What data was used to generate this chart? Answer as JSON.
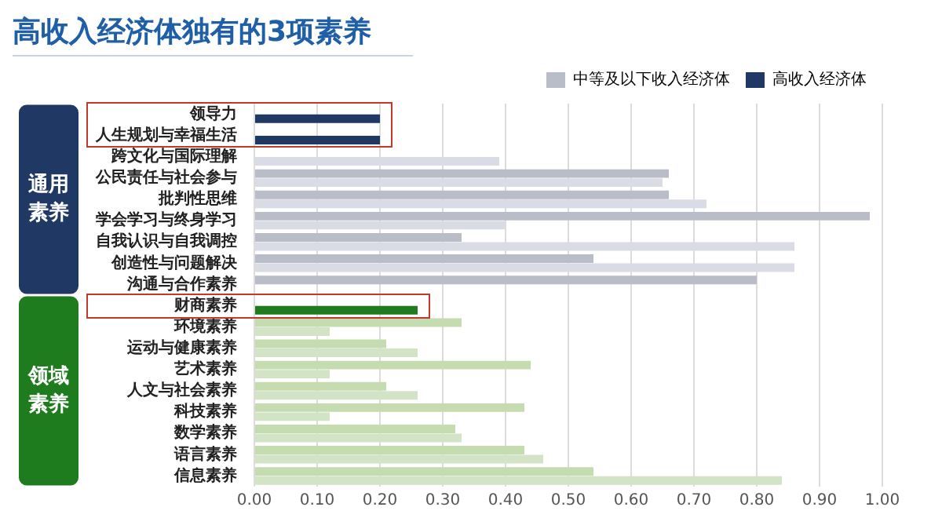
{
  "chart_data": {
    "type": "bar",
    "orientation": "horizontal",
    "title": "高收入经济体独有的3项素养",
    "categories": [
      "领导力",
      "人生规划与幸福生活",
      "跨文化与国际理解",
      "公民责任与社会参与",
      "批判性思维",
      "学会学习与终身学习",
      "自我认识与自我调控",
      "创造性与问题解决",
      "沟通与合作素养",
      "财商素养",
      "环境素养",
      "运动与健康素养",
      "艺术素养",
      "人文与社会素养",
      "科技素养",
      "数学素养",
      "语言素养",
      "信息素养"
    ],
    "series": [
      {
        "name": "中等及以下收入经济体",
        "color": "#b9bdc7",
        "colors": [
          "#b9bdc7",
          "#b9bdc7",
          "#b9bdc7",
          "#b9bdc7",
          "#b9bdc7",
          "#b9bdc7",
          "#b9bdc7",
          "#b9bdc7",
          "#b9bdc7",
          "#c5dbb0",
          "#c5dbb0",
          "#c5dbb0",
          "#c5dbb0",
          "#c5dbb0",
          "#c5dbb0",
          "#c5dbb0",
          "#c5dbb0",
          "#c5dbb0"
        ],
        "values": [
          null,
          null,
          null,
          0.66,
          0.66,
          0.98,
          0.33,
          0.54,
          0.8,
          null,
          0.33,
          0.21,
          0.44,
          0.21,
          0.43,
          0.32,
          0.43,
          0.54
        ]
      },
      {
        "name": "高收入经济体",
        "color": "#1f3864",
        "colors": [
          "#1f3864",
          "#1f3864",
          "#d9dce4",
          "#d9dce4",
          "#d9dce4",
          "#d9dce4",
          "#d9dce4",
          "#d9dce4",
          "#d9dce4",
          "#1e7b1e",
          "#d3e3c6",
          "#d3e3c6",
          "#d3e3c6",
          "#d3e3c6",
          "#d3e3c6",
          "#d3e3c6",
          "#d3e3c6",
          "#d3e3c6"
        ],
        "values": [
          0.2,
          0.2,
          0.39,
          0.65,
          0.72,
          0.4,
          0.86,
          0.86,
          null,
          0.26,
          0.12,
          0.26,
          0.12,
          0.26,
          0.12,
          0.33,
          0.46,
          0.84
        ]
      }
    ],
    "xlim": [
      0,
      1
    ],
    "xticks": [
      {
        "value": 0,
        "label": "0.00"
      },
      {
        "value": 0.1,
        "label": "0.10"
      },
      {
        "value": 0.2,
        "label": "0.20"
      },
      {
        "value": 0.3,
        "label": "0.30"
      },
      {
        "value": 0.4,
        "label": "0.40"
      },
      {
        "value": 0.5,
        "label": "0.50"
      },
      {
        "value": 0.6,
        "label": "0.60"
      },
      {
        "value": 0.7,
        "label": "0.70"
      },
      {
        "value": 0.8,
        "label": "0.80"
      },
      {
        "value": 0.9,
        "label": "0.90"
      },
      {
        "value": 1,
        "label": "1.00"
      }
    ],
    "grid": "x",
    "legend": "top right",
    "annotations": [
      "通用素养",
      "领域素养"
    ]
  }
}
